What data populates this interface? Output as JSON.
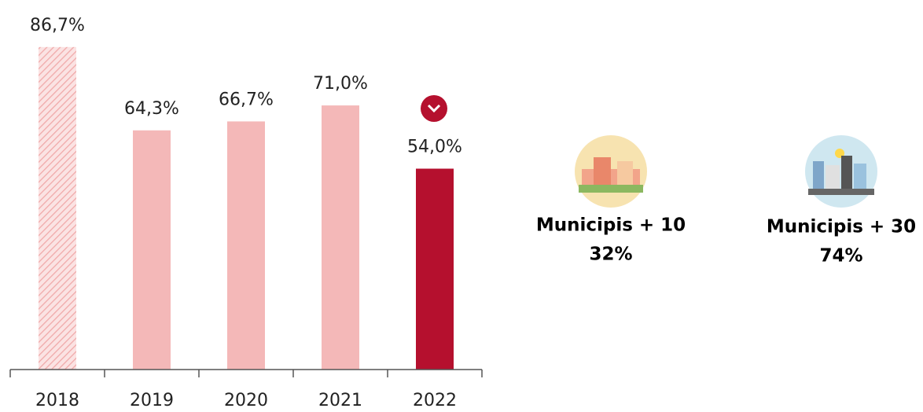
{
  "chart_data": {
    "type": "bar",
    "categories": [
      "2018",
      "2019",
      "2020",
      "2021",
      "2022"
    ],
    "values": [
      86.7,
      64.3,
      66.7,
      71.0,
      54.0
    ],
    "value_labels": [
      "86,7%",
      "64,3%",
      "66,7%",
      "71,0%",
      "54,0%"
    ],
    "colors": [
      "#f4b8b8",
      "#f4b8b8",
      "#f4b8b8",
      "#f4b8b8",
      "#b5102e"
    ],
    "hatched": [
      true,
      false,
      false,
      false,
      false
    ],
    "ylim": [
      0,
      93
    ]
  },
  "callouts": [
    {
      "label": "Municipis + 10",
      "value": "32%"
    },
    {
      "label": "Municipis + 30",
      "value": "74%"
    }
  ]
}
